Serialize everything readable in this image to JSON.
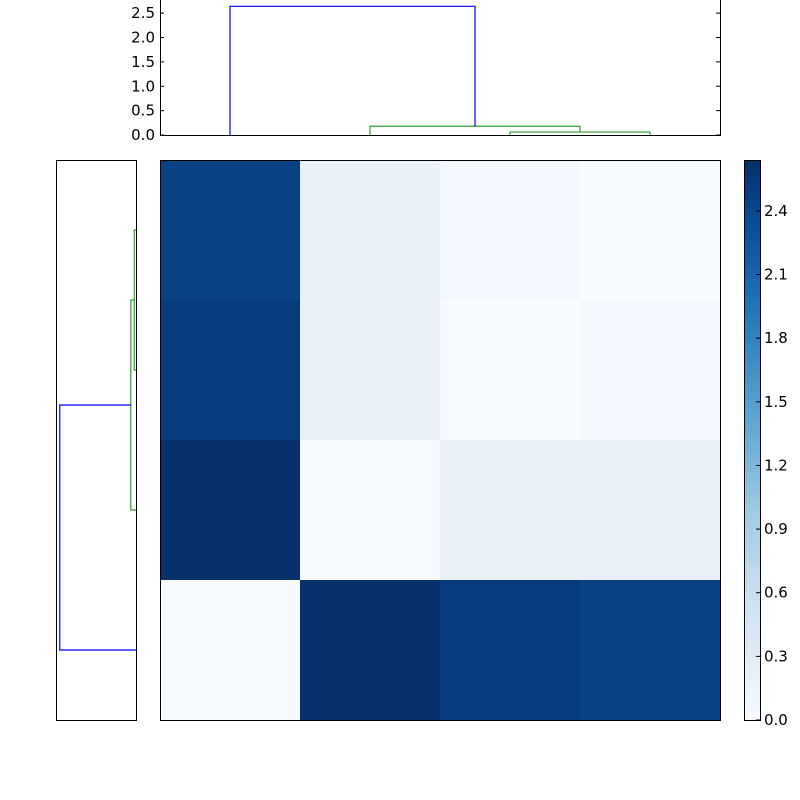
{
  "chart_data": [
    {
      "type": "dendrogram",
      "position": "top",
      "orientation": "top",
      "leaves": 4,
      "ylim": [
        0,
        2.77
      ],
      "yticks": [
        "0.0",
        "0.5",
        "1.0",
        "1.5",
        "2.0",
        "2.5"
      ],
      "links": [
        {
          "left_leaf_pos": 2,
          "right_leaf_pos": 3,
          "left_height": 0,
          "right_height": 0,
          "height": 0.06,
          "color": "#2ca02c"
        },
        {
          "left_leaf_pos": 1,
          "right_leaf_pos": 2.5,
          "left_height": 0,
          "right_height": 0.06,
          "height": 0.18,
          "color": "#2ca02c"
        },
        {
          "left_leaf_pos": 0,
          "right_leaf_pos": 1.75,
          "left_height": 0,
          "right_height": 0.18,
          "height": 2.64,
          "color": "#0000ff"
        }
      ]
    },
    {
      "type": "dendrogram",
      "position": "left",
      "orientation": "left",
      "leaves": 4,
      "xlim": [
        0,
        2.77
      ],
      "links": [
        {
          "left_leaf_pos": 0,
          "right_leaf_pos": 1,
          "left_height": 0,
          "right_height": 0,
          "height": 0.06,
          "color": "#2ca02c"
        },
        {
          "left_leaf_pos": 0.5,
          "right_leaf_pos": 2,
          "left_height": 0.06,
          "right_height": 0,
          "height": 0.18,
          "color": "#2ca02c"
        },
        {
          "left_leaf_pos": 1.25,
          "right_leaf_pos": 3,
          "left_height": 0.18,
          "right_height": 0,
          "height": 2.64,
          "color": "#0000ff"
        }
      ]
    },
    {
      "type": "heatmap",
      "colormap": "Blues",
      "vmin": 0,
      "vmax": 2.64,
      "values": [
        [
          2.47,
          0.18,
          0.08,
          0.0
        ],
        [
          2.53,
          0.18,
          0.0,
          0.08
        ],
        [
          2.64,
          0.0,
          0.18,
          0.18
        ],
        [
          0.0,
          2.64,
          2.53,
          2.47
        ]
      ],
      "colorbar": {
        "ticks": [
          "0.0",
          "0.3",
          "0.6",
          "0.9",
          "1.2",
          "1.5",
          "1.8",
          "2.1",
          "2.4"
        ]
      }
    }
  ]
}
